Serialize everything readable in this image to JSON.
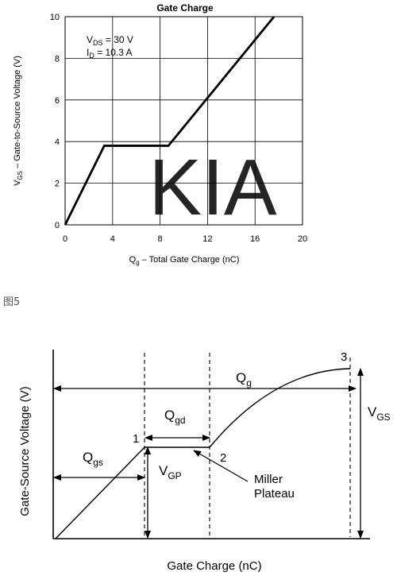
{
  "chart_data": [
    {
      "type": "line",
      "title": "Gate Charge",
      "xlabel_main": "Q",
      "xlabel_sub": "g",
      "xlabel_rest": "  –  Total Gate Charge (nC)",
      "ylabel_main": "V",
      "ylabel_sub": "GS",
      "ylabel_rest": "  –  Gate-to-Source Voltage (V)",
      "xlim": [
        0,
        20
      ],
      "ylim": [
        0,
        10
      ],
      "x_ticks": [
        "0",
        "4",
        "8",
        "12",
        "16",
        "20"
      ],
      "y_ticks": [
        "0",
        "2",
        "4",
        "6",
        "8",
        "10"
      ],
      "grid": true,
      "annotation_vds_main": "V",
      "annotation_vds_sub": "DS",
      "annotation_vds_rest": " = 30 V",
      "annotation_id_main": "I",
      "annotation_id_sub": "D",
      "annotation_id_rest": " = 10.3 A",
      "series": [
        {
          "x": [
            0,
            3.3,
            8.7,
            17.6
          ],
          "y": [
            0,
            3.8,
            3.8,
            10
          ]
        }
      ]
    },
    {
      "type": "line",
      "xlabel": "Gate Charge (nC)",
      "ylabel": "Gate-Source Voltage (V)",
      "point_labels": [
        "1",
        "2",
        "3"
      ],
      "annotations": {
        "qg_main": "Q",
        "qg_sub": "g",
        "qgd_main": "Q",
        "qgd_sub": "gd",
        "qgs_main": "Q",
        "qgs_sub": "gs",
        "vgp_main": "V",
        "vgp_sub": "GP",
        "vgs_main": "V",
        "vgs_sub": "GS",
        "miller_line1": "Miller",
        "miller_line2": "Plateau"
      },
      "points_norm": [
        [
          0,
          0
        ],
        [
          0.31,
          0.5
        ],
        [
          0.53,
          0.5
        ],
        [
          1,
          1
        ]
      ]
    }
  ],
  "watermark": "KIA",
  "figure_label": "图5",
  "colors": {
    "watermark": "#f08a8a",
    "line": "#000000",
    "grid": "#000000"
  }
}
